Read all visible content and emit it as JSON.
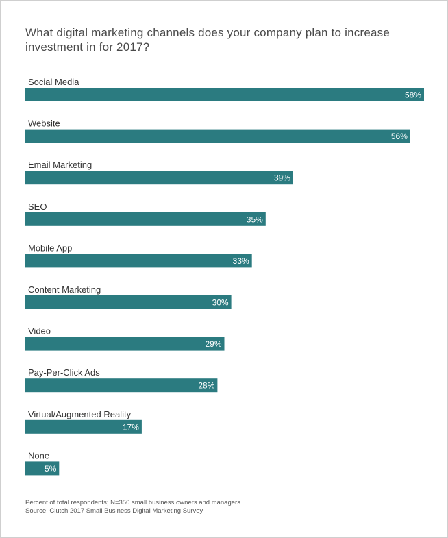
{
  "chart_data": {
    "type": "bar",
    "orientation": "horizontal",
    "title": "What digital marketing channels does your company plan to increase investment in for 2017?",
    "categories": [
      "Social Media",
      "Website",
      "Email Marketing",
      "SEO",
      "Mobile App",
      "Content Marketing",
      "Video",
      "Pay-Per-Click Ads",
      "Virtual/Augmented Reality",
      "None"
    ],
    "values": [
      58,
      56,
      39,
      35,
      33,
      30,
      29,
      28,
      17,
      5
    ],
    "value_labels": [
      "58%",
      "56%",
      "39%",
      "35%",
      "33%",
      "30%",
      "29%",
      "28%",
      "17%",
      "5%"
    ],
    "unit": "%",
    "xlim": [
      0,
      58
    ],
    "grid": false,
    "legend": "none",
    "bar_color": "#2b7b80",
    "value_label_color": "#ffffff"
  },
  "footnote": {
    "line1": "Percent of total respondents; N=350 small business owners and managers",
    "line2": "Source: Clutch 2017 Small Business Digital Marketing Survey"
  }
}
